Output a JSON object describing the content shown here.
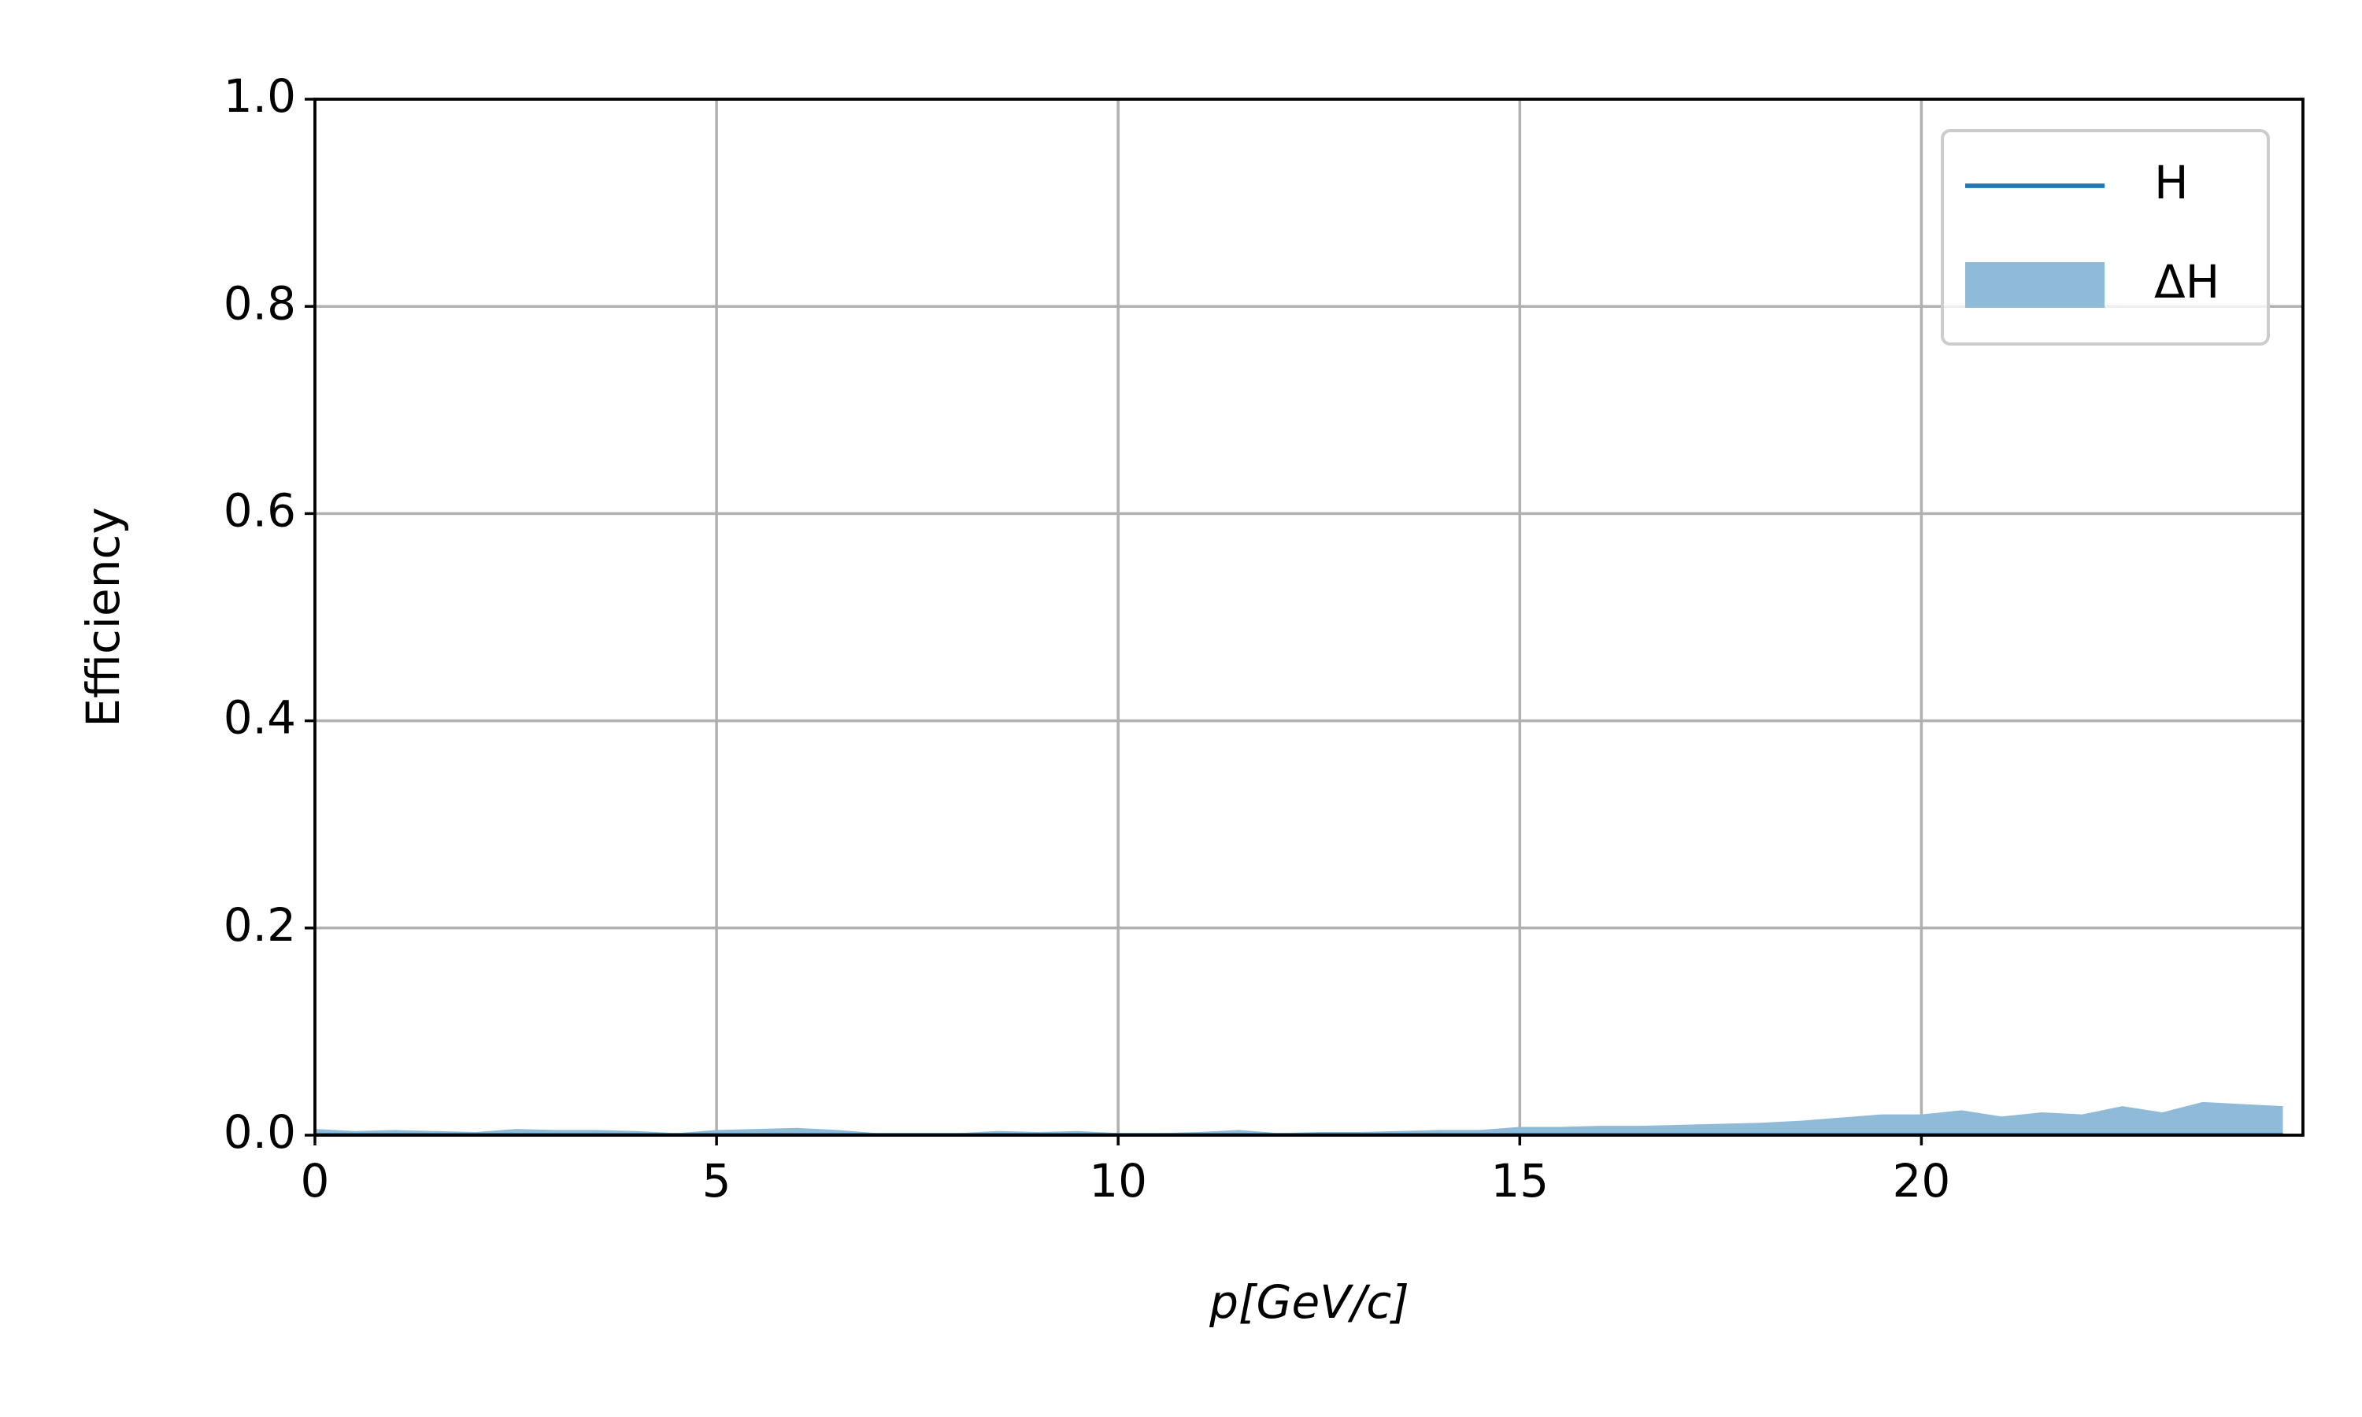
{
  "chart_data": {
    "type": "line",
    "xlabel": "p[GeV/c]",
    "ylabel": "Efficiency",
    "x": [
      0,
      0.5,
      1,
      1.5,
      2,
      2.5,
      3,
      3.5,
      4,
      4.5,
      5,
      5.5,
      6,
      6.5,
      7,
      7.5,
      8,
      8.5,
      9,
      9.5,
      10,
      10.5,
      11,
      11.5,
      12,
      12.5,
      13,
      13.5,
      14,
      14.5,
      15,
      15.5,
      16,
      16.5,
      17,
      17.5,
      18,
      18.5,
      19,
      19.5,
      20,
      20.5,
      21,
      21.5,
      22,
      22.5,
      23,
      23.5,
      24,
      24.5
    ],
    "series": [
      {
        "name": "H",
        "color": "#1f77b4",
        "kind": "line",
        "values": [
          0,
          0,
          0,
          0,
          0,
          0,
          0,
          0,
          0,
          0,
          0,
          0,
          0,
          0,
          0,
          0,
          0,
          0,
          0,
          0,
          0,
          0,
          0,
          0,
          0,
          0,
          0,
          0,
          0,
          0,
          0,
          0,
          0,
          0,
          0,
          0,
          0,
          0,
          0,
          0,
          0,
          0,
          0,
          0,
          0,
          0,
          0,
          0,
          0,
          0
        ]
      },
      {
        "name": "ΔH",
        "color": "#8fbbd9",
        "kind": "area",
        "values": [
          0.006,
          0.004,
          0.005,
          0.004,
          0.003,
          0.006,
          0.005,
          0.005,
          0.004,
          0.002,
          0.005,
          0.006,
          0.007,
          0.005,
          0.002,
          0.002,
          0.002,
          0.004,
          0.003,
          0.004,
          0.002,
          0.002,
          0.003,
          0.005,
          0.002,
          0.003,
          0.003,
          0.004,
          0.005,
          0.005,
          0.008,
          0.008,
          0.009,
          0.009,
          0.01,
          0.011,
          0.012,
          0.014,
          0.017,
          0.02,
          0.02,
          0.024,
          0.018,
          0.022,
          0.02,
          0.028,
          0.022,
          0.032,
          0.03,
          0.028
        ]
      }
    ],
    "xlim": [
      0,
      24.75
    ],
    "ylim": [
      0,
      1
    ],
    "xticks": [
      0,
      5,
      10,
      15,
      20
    ],
    "yticks": [
      {
        "value": 0,
        "label": "0.0"
      },
      0.2,
      0.4,
      0.6,
      0.8,
      {
        "value": 1,
        "label": "1.0"
      }
    ],
    "grid": true,
    "legend": "upper right"
  }
}
